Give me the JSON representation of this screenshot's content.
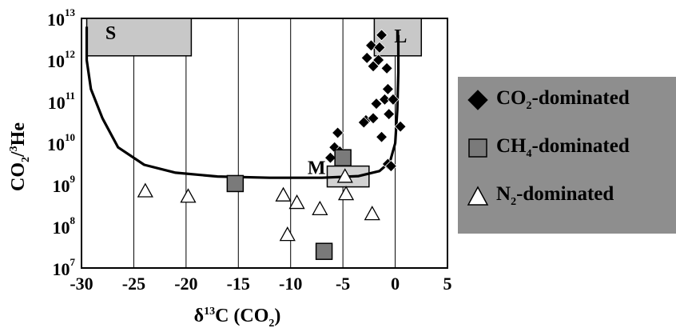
{
  "chart_data": {
    "type": "scatter",
    "xlabel_parts": {
      "delta": "δ",
      "sup": "13",
      "main": "C (CO",
      "sub": "2",
      "end": ")"
    },
    "ylabel_parts": {
      "a": "CO",
      "sub": "2",
      "slash": "/",
      "sup": "3",
      "b": "He"
    },
    "xlim": [
      -30,
      5
    ],
    "ylim_log10": [
      7,
      13
    ],
    "x_ticks": [
      "-30",
      "-25",
      "-20",
      "-15",
      "-10",
      "-5",
      "0",
      "5"
    ],
    "y_ticks": [
      {
        "base": "10",
        "exp": "7"
      },
      {
        "base": "10",
        "exp": "8"
      },
      {
        "base": "10",
        "exp": "9"
      },
      {
        "base": "10",
        "exp": "10"
      },
      {
        "base": "10",
        "exp": "11"
      },
      {
        "base": "10",
        "exp": "12"
      },
      {
        "base": "10",
        "exp": "13"
      }
    ],
    "grid": "vertical",
    "legend_position": "right",
    "end_members": [
      {
        "label": "S",
        "x": [
          -29.5,
          -19.5
        ],
        "log_y": [
          12.1,
          13
        ]
      },
      {
        "label": "L",
        "x": [
          -2,
          2.5
        ],
        "log_y": [
          12.1,
          13
        ]
      },
      {
        "label": "M",
        "x": [
          -6.5,
          -2.5
        ],
        "log_y": [
          8.95,
          9.45
        ]
      }
    ],
    "mixing_curve": [
      {
        "x": -29.5,
        "log_y": 12.8
      },
      {
        "x": -29.5,
        "log_y": 12.0
      },
      {
        "x": -29.1,
        "log_y": 11.3
      },
      {
        "x": -28,
        "log_y": 10.6
      },
      {
        "x": -26.5,
        "log_y": 9.9
      },
      {
        "x": -24,
        "log_y": 9.48
      },
      {
        "x": -21,
        "log_y": 9.29
      },
      {
        "x": -17,
        "log_y": 9.2
      },
      {
        "x": -12,
        "log_y": 9.17
      },
      {
        "x": -7,
        "log_y": 9.17
      },
      {
        "x": -3.5,
        "log_y": 9.21
      },
      {
        "x": -1.5,
        "log_y": 9.33
      },
      {
        "x": -0.5,
        "log_y": 9.55
      },
      {
        "x": 0,
        "log_y": 10.0
      },
      {
        "x": 0.2,
        "log_y": 10.8
      },
      {
        "x": 0.3,
        "log_y": 11.7
      },
      {
        "x": 0.3,
        "log_y": 12.6
      }
    ],
    "series": [
      {
        "name": "CO2-dominated",
        "legend": {
          "a": "CO",
          "sub": "2",
          "b": "-dominated"
        },
        "marker": "diamond",
        "color": "#000000",
        "points": [
          {
            "x": -1.3,
            "log_y": 12.6
          },
          {
            "x": -2.3,
            "log_y": 12.35
          },
          {
            "x": -1.5,
            "log_y": 12.3
          },
          {
            "x": -2.7,
            "log_y": 12.05
          },
          {
            "x": -1.6,
            "log_y": 12.0
          },
          {
            "x": -0.8,
            "log_y": 11.8
          },
          {
            "x": -2.1,
            "log_y": 11.85
          },
          {
            "x": -0.7,
            "log_y": 11.3
          },
          {
            "x": -1.0,
            "log_y": 11.05
          },
          {
            "x": -0.2,
            "log_y": 11.05
          },
          {
            "x": -1.8,
            "log_y": 10.95
          },
          {
            "x": -0.6,
            "log_y": 10.7
          },
          {
            "x": -2.8,
            "log_y": 10.55
          },
          {
            "x": -2.1,
            "log_y": 10.6
          },
          {
            "x": -3.0,
            "log_y": 10.5
          },
          {
            "x": 0.5,
            "log_y": 10.4
          },
          {
            "x": -1.3,
            "log_y": 10.15
          },
          {
            "x": -5.5,
            "log_y": 10.25
          },
          {
            "x": -5.8,
            "log_y": 9.9
          },
          {
            "x": -5.3,
            "log_y": 9.8
          },
          {
            "x": -6.2,
            "log_y": 9.65
          },
          {
            "x": -0.7,
            "log_y": 9.5
          },
          {
            "x": -0.4,
            "log_y": 9.45
          }
        ]
      },
      {
        "name": "CH4-dominated",
        "legend": {
          "a": "CH",
          "sub": "4",
          "b": "-dominated"
        },
        "marker": "square",
        "color": "#7a7a7a",
        "points": [
          {
            "x": -15.3,
            "log_y": 9.03
          },
          {
            "x": -5.0,
            "log_y": 9.65
          },
          {
            "x": -6.8,
            "log_y": 7.4
          }
        ]
      },
      {
        "name": "N2-dominated",
        "legend": {
          "a": "N",
          "sub": "2",
          "b": "-dominated"
        },
        "marker": "triangle",
        "color": "#ffffff",
        "points": [
          {
            "x": -23.9,
            "log_y": 8.85
          },
          {
            "x": -19.8,
            "log_y": 8.72
          },
          {
            "x": -10.7,
            "log_y": 8.75
          },
          {
            "x": -9.4,
            "log_y": 8.57
          },
          {
            "x": -7.2,
            "log_y": 8.42
          },
          {
            "x": -4.7,
            "log_y": 8.78
          },
          {
            "x": -4.8,
            "log_y": 9.2
          },
          {
            "x": -2.2,
            "log_y": 8.3
          },
          {
            "x": -10.3,
            "log_y": 7.8
          }
        ]
      }
    ]
  }
}
